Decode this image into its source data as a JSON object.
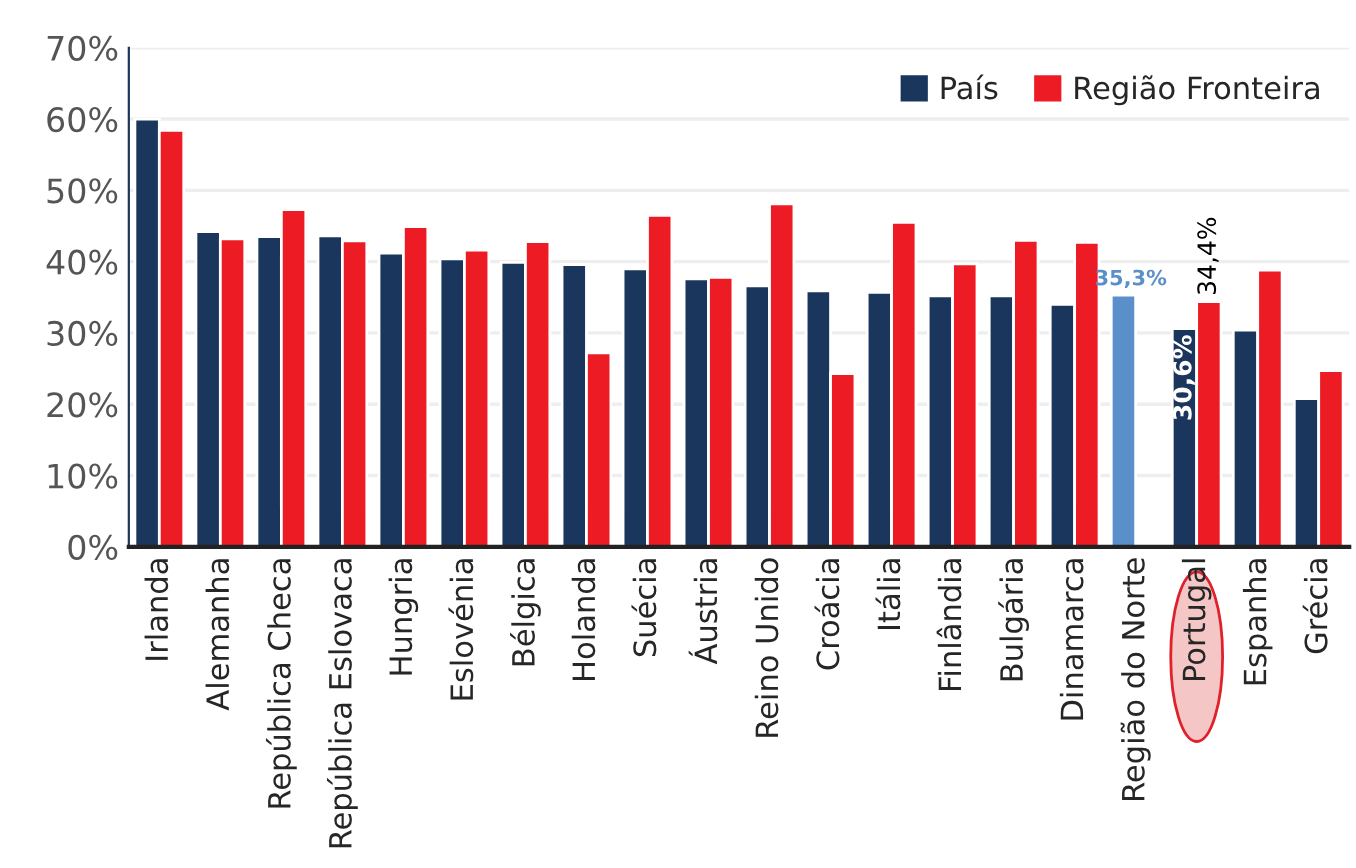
{
  "chart_data": {
    "type": "bar",
    "categories": [
      "Irlanda",
      "Alemanha",
      "República Checa",
      "República Eslovaca",
      "Hungria",
      "Eslovénia",
      "Bélgica",
      "Holanda",
      "Suécia",
      "Áustria",
      "Reino Unido",
      "Croácia",
      "Itália",
      "Finlândia",
      "Bulgária",
      "Dinamarca",
      "Região do Norte",
      "Portugal",
      "Espanha",
      "Grécia"
    ],
    "series": [
      {
        "name": "País",
        "color": "#1b365d",
        "colors": [
          "#1b365d",
          "#1b365d",
          "#1b365d",
          "#1b365d",
          "#1b365d",
          "#1b365d",
          "#1b365d",
          "#1b365d",
          "#1b365d",
          "#1b365d",
          "#1b365d",
          "#1b365d",
          "#1b365d",
          "#1b365d",
          "#1b365d",
          "#1b365d",
          "#5b8fc9",
          "#1b365d",
          "#1b365d",
          "#1b365d"
        ],
        "values": [
          60,
          44.2,
          43.5,
          43.6,
          41.2,
          40.4,
          39.9,
          39.6,
          39.0,
          37.6,
          36.6,
          35.9,
          35.7,
          35.2,
          35.2,
          34.0,
          35.3,
          30.6,
          30.4,
          20.8
        ],
        "value_labels": [
          null,
          null,
          null,
          null,
          null,
          null,
          null,
          null,
          null,
          null,
          null,
          null,
          null,
          null,
          null,
          null,
          "35,3%",
          "30,6%",
          null,
          null
        ]
      },
      {
        "name": "Região Fronteira",
        "color": "#ed1c24",
        "values": [
          58.4,
          43.2,
          47.3,
          42.9,
          44.9,
          41.6,
          42.8,
          27.2,
          46.5,
          37.8,
          48.1,
          24.3,
          45.5,
          39.7,
          43.0,
          42.7,
          null,
          34.4,
          38.8,
          24.7
        ],
        "value_labels": [
          null,
          null,
          null,
          null,
          null,
          null,
          null,
          null,
          null,
          null,
          null,
          null,
          null,
          null,
          null,
          null,
          null,
          "34,4%",
          null,
          null
        ]
      }
    ],
    "ylim": [
      0,
      70
    ],
    "yticks": [
      {
        "value": 0,
        "label": "0%"
      },
      {
        "value": 10,
        "label": "10%"
      },
      {
        "value": 20,
        "label": "20%"
      },
      {
        "value": 30,
        "label": "30%"
      },
      {
        "value": 40,
        "label": "40%"
      },
      {
        "value": 50,
        "label": "50%"
      },
      {
        "value": 60,
        "label": "60%"
      },
      {
        "value": 70,
        "label": "70%"
      }
    ],
    "grid": "y",
    "legend": "top right"
  }
}
